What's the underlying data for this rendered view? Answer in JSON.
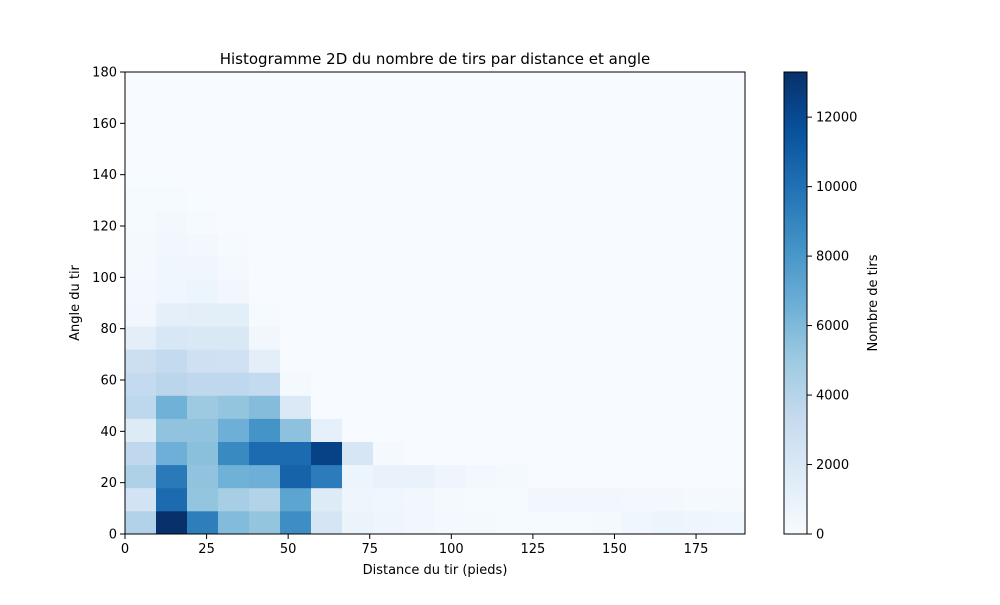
{
  "chart_data": {
    "type": "heatmap",
    "title": "Histogramme 2D du nombre de tirs par distance et angle",
    "xlabel": "Distance du tir (pieds)",
    "ylabel": "Angle du tir",
    "colorbar_label": "Nombre de tirs",
    "colormap": "Blues",
    "color_low": "#f7fbff",
    "color_high": "#08306b",
    "xlim": [
      0,
      190
    ],
    "ylim": [
      0,
      180
    ],
    "clim": [
      0,
      13300
    ],
    "x_ticks": [
      0,
      25,
      50,
      75,
      100,
      125,
      150,
      175
    ],
    "y_ticks": [
      0,
      20,
      40,
      60,
      80,
      100,
      120,
      140,
      160,
      180
    ],
    "colorbar_ticks": [
      0,
      2000,
      4000,
      6000,
      8000,
      10000,
      12000
    ],
    "x_bin_edges": [
      0,
      9.5,
      19,
      28.5,
      38,
      47.5,
      57,
      66.5,
      76,
      85.5,
      95,
      104.5,
      114,
      123.5,
      133,
      142.5,
      152,
      161.5,
      171,
      180.5,
      190
    ],
    "y_bin_edges": [
      0,
      9,
      18,
      27,
      36,
      45,
      54,
      63,
      72,
      81,
      90,
      99,
      108,
      117,
      126,
      135,
      144,
      153,
      162,
      171,
      180
    ],
    "values": [
      [
        4200,
        13300,
        9300,
        5900,
        5300,
        8500,
        2300,
        800,
        600,
        400,
        250,
        200,
        150,
        150,
        150,
        200,
        500,
        700,
        600,
        500
      ],
      [
        2500,
        10300,
        5300,
        4600,
        4100,
        7200,
        1700,
        600,
        500,
        400,
        200,
        150,
        150,
        400,
        400,
        400,
        300,
        300,
        200,
        200
      ],
      [
        4300,
        9500,
        5400,
        6500,
        6600,
        10700,
        9400,
        700,
        900,
        900,
        600,
        300,
        200,
        0,
        0,
        0,
        0,
        0,
        0,
        0
      ],
      [
        3600,
        6600,
        5600,
        8700,
        10300,
        10300,
        12400,
        2200,
        200,
        0,
        0,
        0,
        0,
        0,
        0,
        0,
        0,
        0,
        0,
        0
      ],
      [
        1700,
        5400,
        5400,
        6600,
        8200,
        5500,
        1100,
        0,
        0,
        0,
        0,
        0,
        0,
        0,
        0,
        0,
        0,
        0,
        0,
        0
      ],
      [
        3700,
        6500,
        5000,
        5300,
        5800,
        1900,
        0,
        0,
        0,
        0,
        0,
        0,
        0,
        0,
        0,
        0,
        0,
        0,
        0,
        0
      ],
      [
        3400,
        3800,
        3600,
        3600,
        3400,
        200,
        0,
        0,
        0,
        0,
        0,
        0,
        0,
        0,
        0,
        0,
        0,
        0,
        0,
        0
      ],
      [
        2900,
        3400,
        2800,
        2700,
        1300,
        0,
        0,
        0,
        0,
        0,
        0,
        0,
        0,
        0,
        0,
        0,
        0,
        0,
        0,
        0
      ],
      [
        1300,
        2100,
        2000,
        2000,
        400,
        0,
        0,
        0,
        0,
        0,
        0,
        0,
        0,
        0,
        0,
        0,
        0,
        0,
        0,
        0
      ],
      [
        400,
        1200,
        1300,
        1400,
        150,
        0,
        0,
        0,
        0,
        0,
        0,
        0,
        0,
        0,
        0,
        0,
        0,
        0,
        0,
        0
      ],
      [
        300,
        500,
        700,
        400,
        0,
        0,
        0,
        0,
        0,
        0,
        0,
        0,
        0,
        0,
        0,
        0,
        0,
        0,
        0,
        0
      ],
      [
        250,
        500,
        550,
        250,
        0,
        0,
        0,
        0,
        0,
        0,
        0,
        0,
        0,
        0,
        0,
        0,
        0,
        0,
        0,
        0
      ],
      [
        200,
        400,
        350,
        150,
        0,
        0,
        0,
        0,
        0,
        0,
        0,
        0,
        0,
        0,
        0,
        0,
        0,
        0,
        0,
        0
      ],
      [
        150,
        350,
        150,
        0,
        0,
        0,
        0,
        0,
        0,
        0,
        0,
        0,
        0,
        0,
        0,
        0,
        0,
        0,
        0,
        0
      ],
      [
        100,
        150,
        50,
        0,
        0,
        0,
        0,
        0,
        0,
        0,
        0,
        0,
        0,
        0,
        0,
        0,
        0,
        0,
        0,
        0
      ],
      [
        50,
        50,
        0,
        0,
        0,
        0,
        0,
        0,
        0,
        0,
        0,
        0,
        0,
        0,
        0,
        0,
        0,
        0,
        0,
        0
      ],
      [
        0,
        0,
        0,
        0,
        0,
        0,
        0,
        0,
        0,
        0,
        0,
        0,
        0,
        0,
        0,
        0,
        0,
        0,
        0,
        0
      ],
      [
        0,
        0,
        0,
        0,
        0,
        0,
        0,
        0,
        0,
        0,
        0,
        0,
        0,
        0,
        0,
        0,
        0,
        0,
        0,
        0
      ],
      [
        0,
        0,
        0,
        0,
        0,
        0,
        0,
        0,
        0,
        0,
        0,
        0,
        0,
        0,
        0,
        0,
        0,
        0,
        0,
        0
      ],
      [
        0,
        0,
        0,
        0,
        0,
        0,
        0,
        0,
        0,
        0,
        0,
        0,
        0,
        0,
        0,
        0,
        0,
        0,
        0,
        0
      ]
    ]
  }
}
